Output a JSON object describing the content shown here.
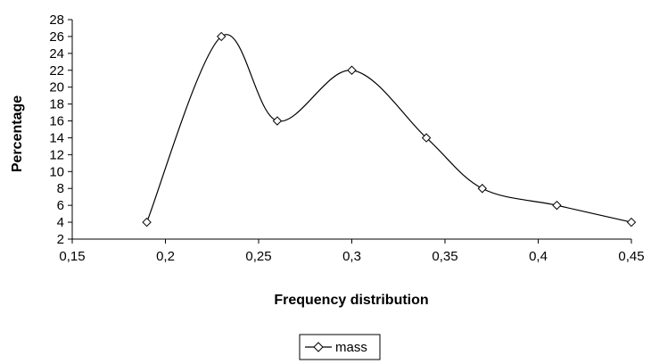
{
  "chart_data": {
    "type": "line",
    "title": "",
    "xlabel": "Frequency distribution",
    "ylabel": "Percentage",
    "xlim": [
      0.15,
      0.45
    ],
    "ylim": [
      2,
      28
    ],
    "x_ticks": [
      0.15,
      0.2,
      0.25,
      0.3,
      0.35,
      0.4,
      0.45
    ],
    "x_tick_labels": [
      "0,15",
      "0,2",
      "0,25",
      "0,3",
      "0,35",
      "0,4",
      "0,45"
    ],
    "y_ticks": [
      2,
      4,
      6,
      8,
      10,
      12,
      14,
      16,
      18,
      20,
      22,
      24,
      26,
      28
    ],
    "y_tick_labels": [
      "2",
      "4",
      "6",
      "8",
      "10",
      "12",
      "14",
      "16",
      "18",
      "20",
      "22",
      "24",
      "26",
      "28"
    ],
    "grid": false,
    "smooth": true,
    "legend_position": "bottom-center",
    "series": [
      {
        "name": "mass",
        "marker": "diamond",
        "color": "#000000",
        "x": [
          0.19,
          0.23,
          0.26,
          0.3,
          0.34,
          0.37,
          0.41,
          0.45
        ],
        "y": [
          4,
          26,
          16,
          22,
          14,
          8,
          6,
          4
        ]
      }
    ]
  }
}
